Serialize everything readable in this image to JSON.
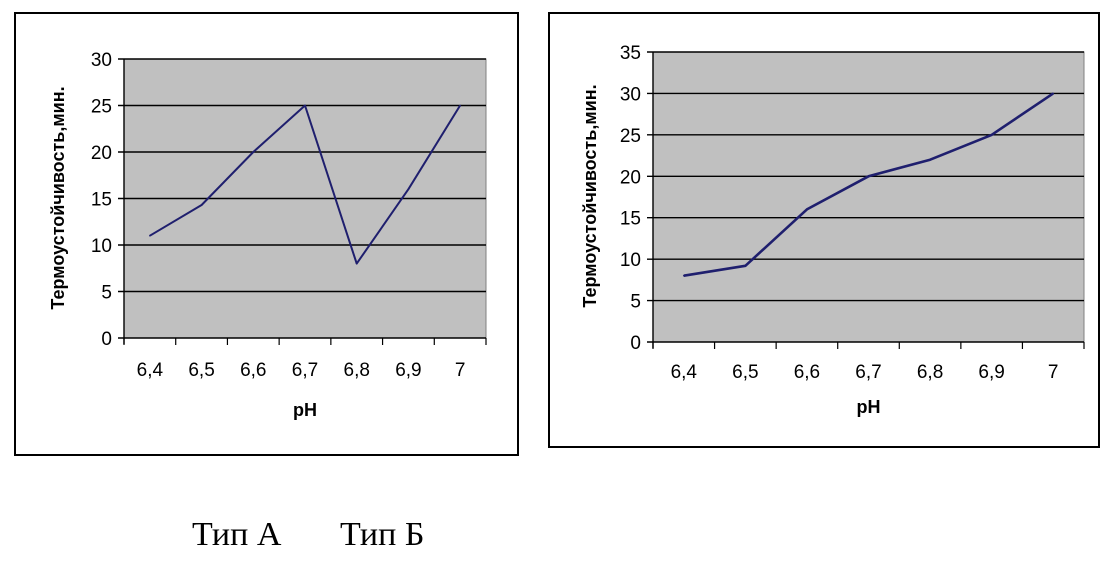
{
  "chart_data": [
    {
      "type": "line",
      "categories": [
        "6,4",
        "6,5",
        "6,6",
        "6,7",
        "6,8",
        "6,9",
        "7"
      ],
      "series": [
        {
          "values": [
            11,
            14.3,
            20,
            25,
            8,
            16,
            25
          ]
        }
      ],
      "xlabel": "pH",
      "ylabel": "Термоустойчивость,мин.",
      "ylim": [
        0,
        30
      ],
      "yticks": [
        "0",
        "5",
        "10",
        "15",
        "20",
        "25",
        "30"
      ],
      "grid": true,
      "plot_bg": "#c0c0c0",
      "line_color": "#1f1f6e"
    },
    {
      "type": "line",
      "categories": [
        "6,4",
        "6,5",
        "6,6",
        "6,7",
        "6,8",
        "6,9",
        "7"
      ],
      "series": [
        {
          "values": [
            8,
            9.2,
            16,
            20,
            22,
            25,
            30
          ]
        }
      ],
      "xlabel": "pH",
      "ylabel": "Термоустойчивость,мин.",
      "ylim": [
        0,
        35
      ],
      "yticks": [
        "0",
        "5",
        "10",
        "15",
        "20",
        "25",
        "30",
        "35"
      ],
      "grid": true,
      "plot_bg": "#c0c0c0",
      "line_color": "#1f1f6e"
    }
  ],
  "captions": {
    "a": "Тип А",
    "b": "Тип Б"
  }
}
